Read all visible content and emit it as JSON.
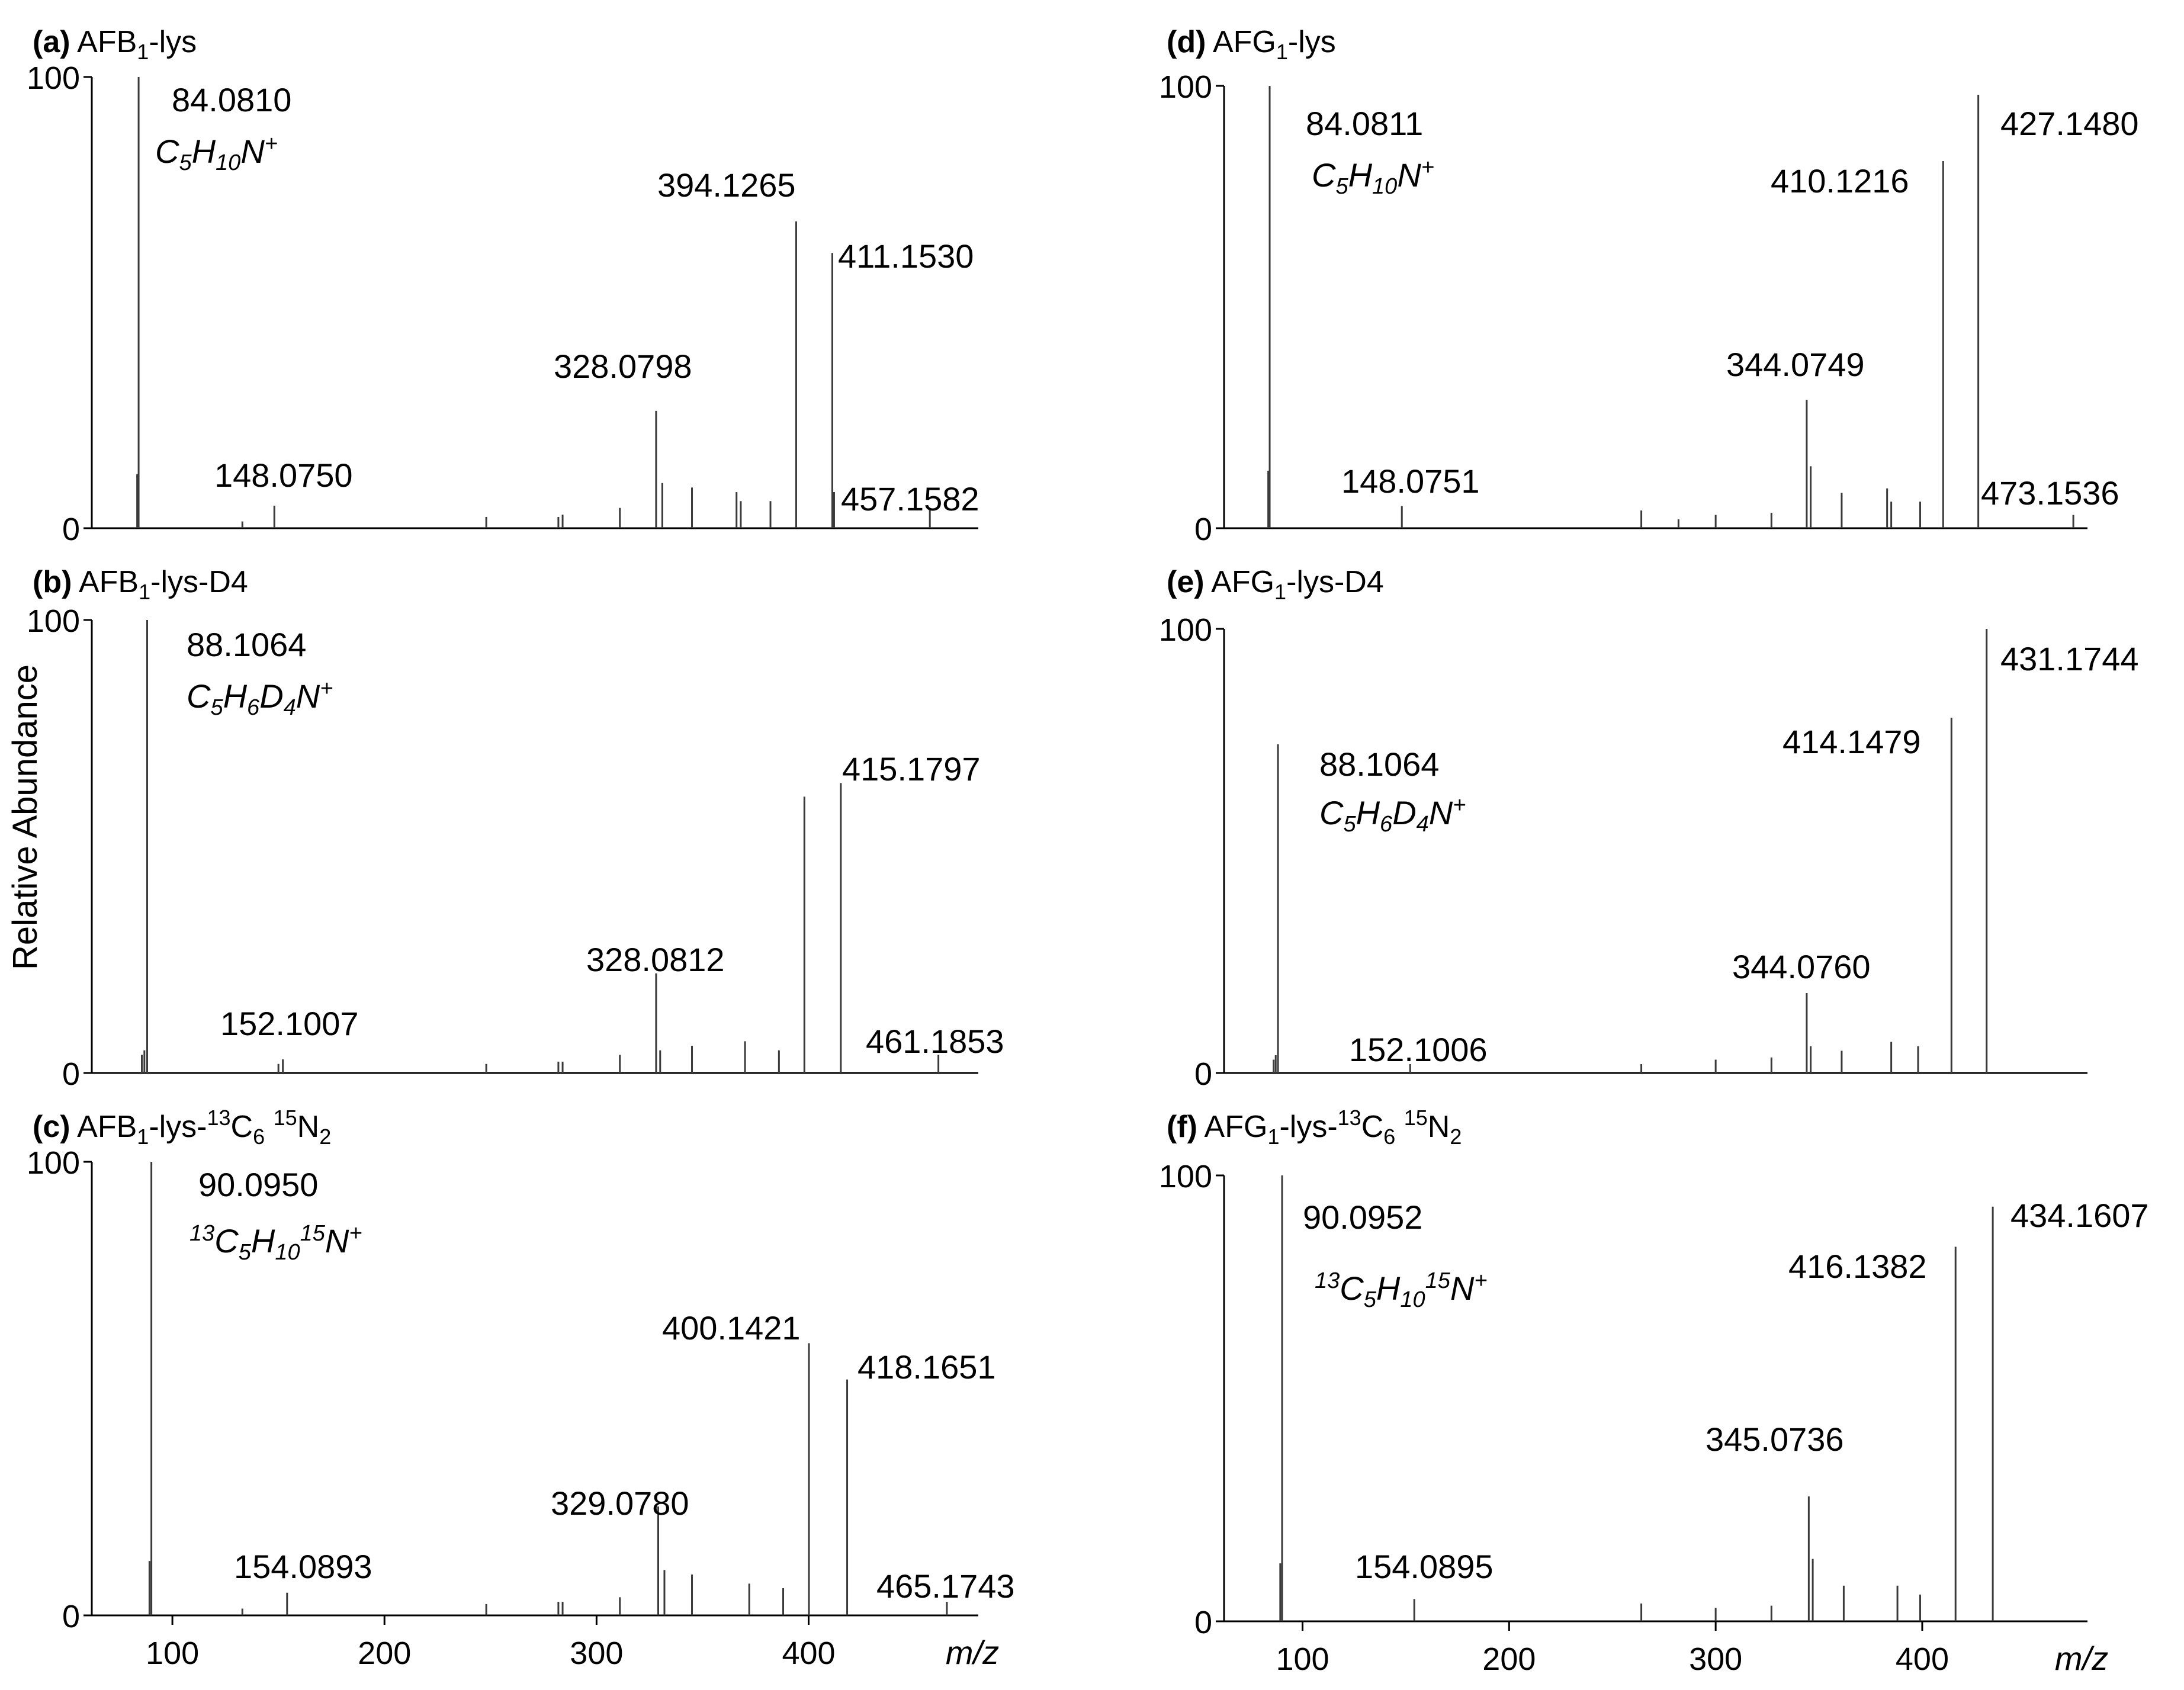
{
  "figure": {
    "ylabel": "Relative Abundance",
    "xlabel": "m/z"
  },
  "chart_data": [
    {
      "type": "line",
      "panel": "a",
      "title": {
        "letter": "(a)",
        "pre": "AFB",
        "sub1": "1",
        "post": "-lys",
        "extra": ""
      },
      "xlim": [
        62,
        480
      ],
      "ylim": [
        0,
        100
      ],
      "yticks": [
        "100",
        "0"
      ],
      "xticks": [],
      "xticklabels": [],
      "show_xlabel": false,
      "peaks": [
        {
          "x": 84.081,
          "y": 100,
          "label": "84.0810"
        },
        {
          "x": 83.4,
          "y": 12
        },
        {
          "x": 148.075,
          "y": 5,
          "label": "148.0750"
        },
        {
          "x": 133,
          "y": 1.5
        },
        {
          "x": 248,
          "y": 2.5
        },
        {
          "x": 282,
          "y": 2.5
        },
        {
          "x": 284,
          "y": 3
        },
        {
          "x": 311,
          "y": 4.5
        },
        {
          "x": 328.0798,
          "y": 26,
          "label": "328.0798"
        },
        {
          "x": 331,
          "y": 10
        },
        {
          "x": 345,
          "y": 9
        },
        {
          "x": 366,
          "y": 8
        },
        {
          "x": 368,
          "y": 6
        },
        {
          "x": 382,
          "y": 6
        },
        {
          "x": 394.1265,
          "y": 68,
          "label": "394.1265"
        },
        {
          "x": 411.153,
          "y": 61,
          "label": "411.1530"
        },
        {
          "x": 412,
          "y": 8
        },
        {
          "x": 457.1582,
          "y": 4,
          "label": "457.1582"
        }
      ],
      "formula": {
        "parts": [
          [
            "C",
            ""
          ],
          [
            "5",
            "sub"
          ],
          [
            "H",
            ""
          ],
          [
            "10",
            "sub"
          ],
          [
            "N",
            ""
          ],
          [
            "+",
            "sup"
          ]
        ]
      }
    },
    {
      "type": "line",
      "panel": "b",
      "title": {
        "letter": "(b)",
        "pre": "AFB",
        "sub1": "1",
        "post": "-lys-D4",
        "extra": ""
      },
      "xlim": [
        62,
        480
      ],
      "ylim": [
        0,
        100
      ],
      "yticks": [
        "100",
        "0"
      ],
      "xticks": [],
      "xticklabels": [],
      "show_xlabel": false,
      "peaks": [
        {
          "x": 88.1064,
          "y": 100,
          "label": "88.1064"
        },
        {
          "x": 86.8,
          "y": 5
        },
        {
          "x": 85.6,
          "y": 4
        },
        {
          "x": 152.1007,
          "y": 3,
          "label": "152.1007"
        },
        {
          "x": 150,
          "y": 2
        },
        {
          "x": 248,
          "y": 2
        },
        {
          "x": 282,
          "y": 2.5
        },
        {
          "x": 284,
          "y": 2.5
        },
        {
          "x": 311,
          "y": 4
        },
        {
          "x": 328.0812,
          "y": 22,
          "label": "328.0812"
        },
        {
          "x": 330,
          "y": 5
        },
        {
          "x": 345,
          "y": 6
        },
        {
          "x": 370,
          "y": 7
        },
        {
          "x": 386,
          "y": 5
        },
        {
          "x": 398,
          "y": 61
        },
        {
          "x": 415.1797,
          "y": 64,
          "label": "415.1797"
        },
        {
          "x": 461.1853,
          "y": 4,
          "label": "461.1853"
        }
      ],
      "formula": {
        "parts": [
          [
            "C",
            ""
          ],
          [
            "5",
            "sub"
          ],
          [
            "H",
            ""
          ],
          [
            "6",
            "sub"
          ],
          [
            "D",
            ""
          ],
          [
            "4",
            "sub"
          ],
          [
            "N",
            ""
          ],
          [
            "+",
            "sup"
          ]
        ]
      }
    },
    {
      "type": "line",
      "panel": "c",
      "title": {
        "letter": "(c)",
        "pre": "AFB",
        "sub1": "1",
        "post": "-lys-",
        "extra": "iso"
      },
      "xlim": [
        62,
        480
      ],
      "ylim": [
        0,
        100
      ],
      "yticks": [
        "100",
        "0"
      ],
      "xticks": [
        100,
        200,
        300,
        400
      ],
      "xticklabels": [
        "100",
        "200",
        "300",
        "400"
      ],
      "show_xlabel": true,
      "peaks": [
        {
          "x": 90.095,
          "y": 100,
          "label": "90.0950"
        },
        {
          "x": 89.2,
          "y": 12
        },
        {
          "x": 154.0893,
          "y": 5,
          "label": "154.0893"
        },
        {
          "x": 133,
          "y": 1.5
        },
        {
          "x": 248,
          "y": 2.5
        },
        {
          "x": 282,
          "y": 3
        },
        {
          "x": 284,
          "y": 3
        },
        {
          "x": 311,
          "y": 4
        },
        {
          "x": 329.078,
          "y": 24,
          "label": "329.0780"
        },
        {
          "x": 332,
          "y": 10
        },
        {
          "x": 345,
          "y": 9
        },
        {
          "x": 372,
          "y": 7
        },
        {
          "x": 388,
          "y": 6
        },
        {
          "x": 400.1421,
          "y": 60,
          "label": "400.1421"
        },
        {
          "x": 418.1651,
          "y": 52,
          "label": "418.1651"
        },
        {
          "x": 465.1743,
          "y": 3,
          "label": "465.1743"
        }
      ],
      "formula": {
        "parts": [
          [
            "13",
            "sup"
          ],
          [
            "C",
            ""
          ],
          [
            "5",
            "sub"
          ],
          [
            "H",
            ""
          ],
          [
            "10",
            "sub"
          ],
          [
            "15",
            "sup"
          ],
          [
            "N",
            ""
          ],
          [
            "+",
            "sup"
          ]
        ]
      }
    },
    {
      "type": "line",
      "panel": "d",
      "title": {
        "letter": "(d)",
        "pre": "AFG",
        "sub1": "1",
        "post": "-lys",
        "extra": ""
      },
      "xlim": [
        62,
        480
      ],
      "ylim": [
        0,
        100
      ],
      "yticks": [
        "100",
        "0"
      ],
      "xticks": [],
      "xticklabels": [],
      "show_xlabel": false,
      "peaks": [
        {
          "x": 84.0811,
          "y": 100,
          "label": "84.0811"
        },
        {
          "x": 83.4,
          "y": 13
        },
        {
          "x": 148.0751,
          "y": 5,
          "label": "148.0751"
        },
        {
          "x": 264,
          "y": 4
        },
        {
          "x": 282,
          "y": 2
        },
        {
          "x": 300,
          "y": 3
        },
        {
          "x": 327,
          "y": 3.5
        },
        {
          "x": 344.0749,
          "y": 29,
          "label": "344.0749"
        },
        {
          "x": 346,
          "y": 14
        },
        {
          "x": 361,
          "y": 8
        },
        {
          "x": 383,
          "y": 9
        },
        {
          "x": 385,
          "y": 6
        },
        {
          "x": 399,
          "y": 6
        },
        {
          "x": 410.1216,
          "y": 83,
          "label": "410.1216"
        },
        {
          "x": 427.148,
          "y": 98,
          "label": "427.1480"
        },
        {
          "x": 473.1536,
          "y": 3,
          "label": "473.1536"
        }
      ],
      "formula": {
        "parts": [
          [
            "C",
            ""
          ],
          [
            "5",
            "sub"
          ],
          [
            "H",
            ""
          ],
          [
            "10",
            "sub"
          ],
          [
            "N",
            ""
          ],
          [
            "+",
            "sup"
          ]
        ]
      }
    },
    {
      "type": "line",
      "panel": "e",
      "title": {
        "letter": "(e)",
        "pre": "AFG",
        "sub1": "1",
        "post": "-lys-D4",
        "extra": ""
      },
      "xlim": [
        62,
        480
      ],
      "ylim": [
        0,
        100
      ],
      "yticks": [
        "100",
        "0"
      ],
      "xticks": [],
      "xticklabels": [],
      "show_xlabel": false,
      "peaks": [
        {
          "x": 88.1064,
          "y": 74,
          "label": "88.1064"
        },
        {
          "x": 87,
          "y": 4
        },
        {
          "x": 86,
          "y": 3
        },
        {
          "x": 152.1006,
          "y": 2,
          "label": "152.1006"
        },
        {
          "x": 264,
          "y": 2
        },
        {
          "x": 300,
          "y": 3
        },
        {
          "x": 327,
          "y": 3.5
        },
        {
          "x": 344.076,
          "y": 18,
          "label": "344.0760"
        },
        {
          "x": 346,
          "y": 6
        },
        {
          "x": 361,
          "y": 5
        },
        {
          "x": 385,
          "y": 7
        },
        {
          "x": 398,
          "y": 6
        },
        {
          "x": 414.1479,
          "y": 80,
          "label": "414.1479"
        },
        {
          "x": 431.1744,
          "y": 100,
          "label": "431.1744"
        }
      ],
      "formula": {
        "parts": [
          [
            "C",
            ""
          ],
          [
            "5",
            "sub"
          ],
          [
            "H",
            ""
          ],
          [
            "6",
            "sub"
          ],
          [
            "D",
            ""
          ],
          [
            "4",
            "sub"
          ],
          [
            "N",
            ""
          ],
          [
            "+",
            "sup"
          ]
        ]
      }
    },
    {
      "type": "line",
      "panel": "f",
      "title": {
        "letter": "(f)",
        "pre": "AFG",
        "sub1": "1",
        "post": "-lys-",
        "extra": "iso"
      },
      "xlim": [
        62,
        480
      ],
      "ylim": [
        0,
        100
      ],
      "yticks": [
        "100",
        "0"
      ],
      "xticks": [
        100,
        200,
        300,
        400
      ],
      "xticklabels": [
        "100",
        "200",
        "300",
        "400"
      ],
      "show_xlabel": true,
      "peaks": [
        {
          "x": 90.0952,
          "y": 100,
          "label": "90.0952"
        },
        {
          "x": 89.2,
          "y": 13
        },
        {
          "x": 154.0895,
          "y": 5,
          "label": "154.0895"
        },
        {
          "x": 264,
          "y": 4
        },
        {
          "x": 300,
          "y": 3
        },
        {
          "x": 327,
          "y": 3.5
        },
        {
          "x": 345.0736,
          "y": 28,
          "label": "345.0736"
        },
        {
          "x": 347,
          "y": 14
        },
        {
          "x": 362,
          "y": 8
        },
        {
          "x": 388,
          "y": 8
        },
        {
          "x": 399,
          "y": 6
        },
        {
          "x": 416.1382,
          "y": 84,
          "label": "416.1382"
        },
        {
          "x": 434.1607,
          "y": 93,
          "label": "434.1607"
        }
      ],
      "formula": {
        "parts": [
          [
            "13",
            "sup"
          ],
          [
            "C",
            ""
          ],
          [
            "5",
            "sub"
          ],
          [
            "H",
            ""
          ],
          [
            "10",
            "sub"
          ],
          [
            "15",
            "sup"
          ],
          [
            "N",
            ""
          ],
          [
            "+",
            "sup"
          ]
        ]
      }
    }
  ],
  "iso_label": {
    "a": "13",
    "b": "C",
    "c": "6",
    "d": " ",
    "e": "15",
    "f": "N",
    "g": "2"
  },
  "colors": {
    "axis": "#000000",
    "peak": "#3a3a3a",
    "text": "#000000"
  }
}
